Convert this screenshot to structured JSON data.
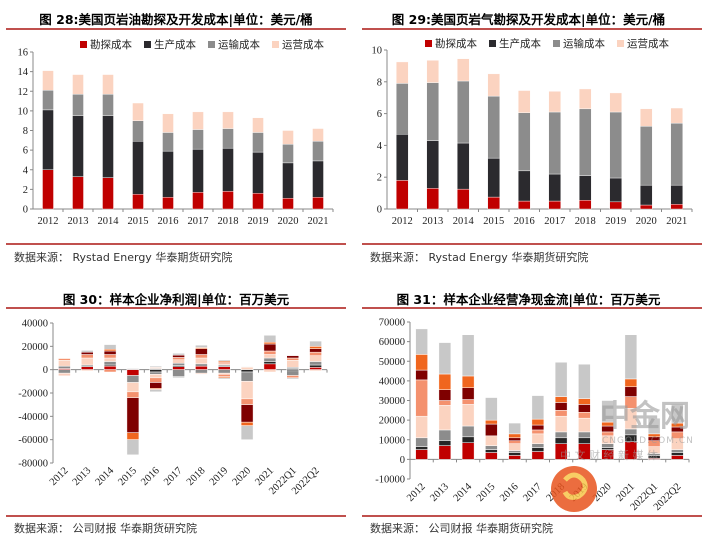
{
  "panels": [
    {
      "title": "图 28:美国页岩油勘探及开发成本|单位：美元/桶",
      "source": "数据来源：  Rystad Energy 华泰期货研究院"
    },
    {
      "title": "图 29:美国页岩气勘探及开发成本|单位：美元/桶",
      "source": "数据来源：  Rystad Energy 华泰期货研究院"
    },
    {
      "title": "图 30：样本企业净利润|单位：百万美元",
      "source": "数据来源：  公司财报  华泰期货研究院"
    },
    {
      "title": "图 31：样本企业经营净现金流|单位：百万美元",
      "source": "数据来源：  公司财报  华泰期货研究院"
    }
  ],
  "watermark": {
    "brand": "中金网",
    "domain": "CNGOLD.COM.CN",
    "slogan": "中 文 财 经 新 媒 体"
  },
  "colors": {
    "rule": "#c0504d",
    "palette": [
      "#c00000",
      "#262626",
      "#8c8c8c",
      "#fbd3c0",
      "#f4916e",
      "#7f0000",
      "#f0661e",
      "#c8c8c8"
    ]
  },
  "chart_data": [
    {
      "type": "bar",
      "stacked": true,
      "title": "图 28:美国页岩油勘探及开发成本|单位：美元/桶",
      "categories": [
        "2012",
        "2013",
        "2014",
        "2015",
        "2016",
        "2017",
        "2018",
        "2019",
        "2020",
        "2021"
      ],
      "ylim": [
        0,
        16
      ],
      "yticks": [
        "0",
        "2",
        "4",
        "6",
        "8",
        "10",
        "12",
        "14",
        "16"
      ],
      "legend": "top",
      "series": [
        {
          "name": "勘探成本",
          "color": "#c00000",
          "values": [
            4.0,
            3.3,
            3.2,
            1.5,
            1.2,
            1.7,
            1.8,
            1.6,
            1.1,
            1.2
          ]
        },
        {
          "name": "生产成本",
          "color": "#2b2a2e",
          "values": [
            6.1,
            6.2,
            6.3,
            5.4,
            4.7,
            4.4,
            4.4,
            4.2,
            3.6,
            3.7
          ]
        },
        {
          "name": "运输成本",
          "color": "#8c8c8c",
          "values": [
            2.0,
            2.2,
            2.2,
            2.1,
            1.9,
            2.0,
            2.0,
            2.0,
            1.9,
            2.0
          ]
        },
        {
          "name": "运营成本",
          "color": "#fbd3c0",
          "values": [
            2.0,
            2.0,
            2.0,
            1.8,
            1.9,
            1.8,
            1.7,
            1.5,
            1.4,
            1.3
          ]
        }
      ]
    },
    {
      "type": "bar",
      "stacked": true,
      "title": "图 29:美国页岩气勘探及开发成本|单位：美元/桶",
      "categories": [
        "2012",
        "2013",
        "2014",
        "2015",
        "2016",
        "2017",
        "2018",
        "2019",
        "2020",
        "2021"
      ],
      "ylim": [
        0,
        10
      ],
      "yticks": [
        "0",
        "2",
        "4",
        "6",
        "8",
        "10"
      ],
      "legend": "top",
      "series": [
        {
          "name": "勘探成本",
          "color": "#c00000",
          "values": [
            1.8,
            1.3,
            1.25,
            0.75,
            0.5,
            0.5,
            0.55,
            0.45,
            0.25,
            0.3
          ]
        },
        {
          "name": "生产成本",
          "color": "#2b2a2e",
          "values": [
            2.9,
            3.0,
            2.9,
            2.45,
            1.9,
            1.7,
            1.55,
            1.5,
            1.25,
            1.2
          ]
        },
        {
          "name": "运输成本",
          "color": "#8c8c8c",
          "values": [
            3.2,
            3.65,
            3.9,
            3.9,
            3.65,
            3.9,
            4.2,
            4.15,
            3.7,
            3.9
          ]
        },
        {
          "name": "运营成本",
          "color": "#fbd3c0",
          "values": [
            1.35,
            1.4,
            1.4,
            1.4,
            1.4,
            1.3,
            1.25,
            1.2,
            1.1,
            0.95
          ]
        }
      ]
    },
    {
      "type": "bar",
      "stacked": true,
      "title": "图 30：样本企业净利润|单位：百万美元",
      "categories": [
        "2012",
        "2013",
        "2014",
        "2015",
        "2016",
        "2017",
        "2018",
        "2019",
        "2020",
        "2021",
        "2022Q1",
        "2022Q2"
      ],
      "ylim": [
        -80000,
        40000
      ],
      "yticks": [
        "-80000",
        "-60000",
        "-40000",
        "-20000",
        "0",
        "20000",
        "40000"
      ],
      "positive": [
        [
          1000,
          0,
          2000,
          5000,
          1500,
          0,
          500,
          0
        ],
        [
          2500,
          0,
          1500,
          6000,
          3000,
          2000,
          0,
          1500
        ],
        [
          3000,
          1000,
          3000,
          3000,
          3000,
          3000,
          1500,
          4000
        ],
        [
          0,
          0,
          0,
          0,
          0,
          0,
          0,
          1000
        ],
        [
          0,
          0,
          1000,
          1000,
          0,
          0,
          0,
          1000
        ],
        [
          2500,
          1000,
          2000,
          3000,
          2000,
          2000,
          0,
          1500
        ],
        [
          3000,
          0,
          2000,
          5000,
          3000,
          5000,
          1000,
          2000
        ],
        [
          2500,
          0,
          1500,
          1000,
          1500,
          0,
          1000,
          1000
        ],
        [
          0,
          0,
          0,
          2000,
          0,
          0,
          500,
          500
        ],
        [
          5000,
          2000,
          3000,
          3000,
          3000,
          6000,
          1500,
          6000
        ],
        [
          0,
          1000,
          1000,
          6000,
          2000,
          2000,
          0,
          0
        ],
        [
          2000,
          2000,
          3000,
          5000,
          3000,
          3000,
          2000,
          4500
        ]
      ],
      "negative": [
        [
          0,
          0,
          3000,
          1000,
          1000,
          0,
          0,
          0
        ],
        [
          0,
          0,
          0,
          1000,
          0,
          0,
          0,
          0
        ],
        [
          0,
          0,
          0,
          0,
          2000,
          0,
          0,
          0
        ],
        [
          5000,
          0,
          6000,
          8000,
          5000,
          30000,
          6000,
          13000
        ],
        [
          0,
          2000,
          2000,
          3000,
          4000,
          5000,
          1000,
          2000
        ],
        [
          0,
          0,
          6000,
          0,
          0,
          0,
          0,
          1000
        ],
        [
          0,
          0,
          3000,
          1000,
          0,
          0,
          0,
          0
        ],
        [
          0,
          0,
          3000,
          1000,
          2000,
          0,
          1000,
          1000
        ],
        [
          0,
          2000,
          8000,
          15000,
          5000,
          15000,
          3000,
          12000
        ],
        [
          0,
          0,
          0,
          2000,
          0,
          0,
          0,
          0
        ],
        [
          0,
          1000,
          4000,
          0,
          2000,
          0,
          0,
          1000
        ],
        [
          0,
          0,
          0,
          1000,
          0,
          0,
          0,
          0
        ]
      ]
    },
    {
      "type": "bar",
      "stacked": true,
      "title": "图 31：样本企业经营净现金流|单位：百万美元",
      "categories": [
        "2012",
        "2013",
        "2014",
        "2015",
        "2016",
        "2017",
        "2018",
        "2019",
        "2020",
        "2021",
        "2022Q1",
        "2022Q2"
      ],
      "ylim": [
        -10000,
        70000
      ],
      "yticks": [
        "-10000",
        "0",
        "10000",
        "20000",
        "30000",
        "40000",
        "50000",
        "60000",
        "70000"
      ],
      "positive": [
        [
          5000,
          1500,
          4500,
          11000,
          18500,
          5000,
          8000,
          13000
        ],
        [
          7000,
          2500,
          5500,
          12500,
          2500,
          5500,
          8000,
          16000
        ],
        [
          8500,
          3000,
          5500,
          11000,
          2500,
          6000,
          6000,
          21000
        ],
        [
          3500,
          1500,
          2000,
          5000,
          0,
          6000,
          2000,
          11500
        ],
        [
          2000,
          1500,
          1000,
          3500,
          1500,
          1500,
          2000,
          5500
        ],
        [
          4000,
          2000,
          2000,
          5000,
          2000,
          2500,
          3000,
          12000
        ],
        [
          8000,
          3000,
          3000,
          8000,
          3000,
          4000,
          3000,
          17500
        ],
        [
          8000,
          3000,
          3000,
          7000,
          3000,
          4000,
          3000,
          17500
        ],
        [
          5000,
          1000,
          2000,
          4000,
          2000,
          3000,
          2000,
          11000
        ],
        [
          9000,
          3500,
          3000,
          10500,
          6000,
          5000,
          4000,
          22500
        ],
        [
          500,
          1500,
          1000,
          3500,
          3000,
          2000,
          1500,
          8000
        ],
        [
          2000,
          1500,
          1500,
          5500,
          3500,
          2500,
          2000,
          9500
        ]
      ]
    }
  ]
}
